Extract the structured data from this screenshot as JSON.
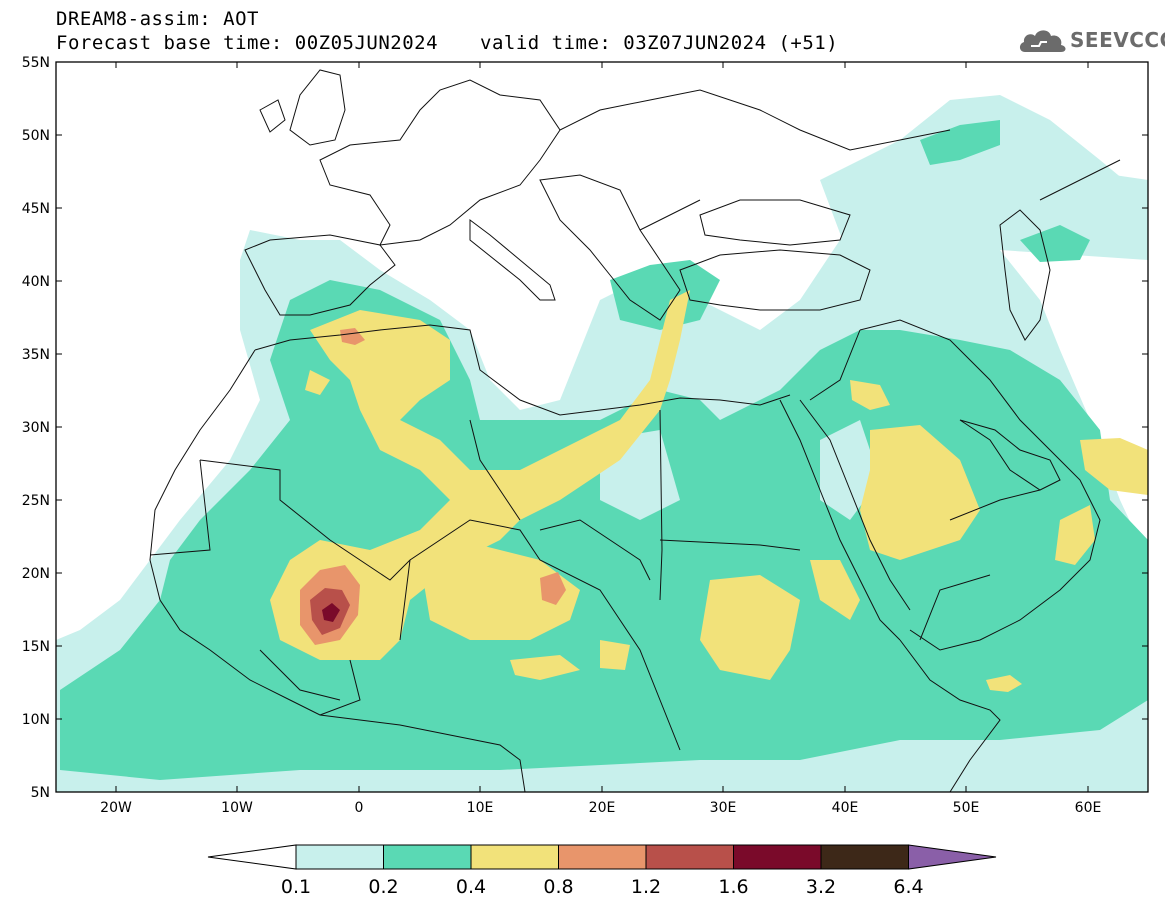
{
  "header": {
    "title": "DREAM8-assim: AOT",
    "forecast_base": "Forecast base time: 00Z05JUN2024",
    "valid_time": "valid time: 03Z07JUN2024 (+51)"
  },
  "logo": {
    "text": "SEEVCCC",
    "icon": "cloud-icon"
  },
  "map": {
    "lat_labels": [
      "55N",
      "50N",
      "45N",
      "40N",
      "35N",
      "30N",
      "25N",
      "20N",
      "15N",
      "10N",
      "5N"
    ],
    "lon_labels": [
      "20W",
      "10W",
      "0",
      "10E",
      "20E",
      "30E",
      "40E",
      "50E",
      "60E"
    ],
    "extent": {
      "lon": [
        -25,
        65
      ],
      "lat": [
        5,
        55
      ]
    }
  },
  "colorbar": {
    "labels": [
      "0.1",
      "0.2",
      "0.4",
      "0.8",
      "1.2",
      "1.6",
      "3.2",
      "6.4"
    ],
    "colors": [
      "#c8f0ec",
      "#5ad9b4",
      "#f2e27a",
      "#e8956b",
      "#b8504a",
      "#7a0a2a",
      "#3d2818"
    ],
    "under_color": "#ffffff",
    "over_color": "#8a5fa8"
  },
  "palette": {
    "c1": "#c8f0ec",
    "c2": "#5ad9b4",
    "c3": "#f2e27a",
    "c4": "#e8956b",
    "c5": "#b8504a",
    "c6": "#7a0a2a"
  }
}
